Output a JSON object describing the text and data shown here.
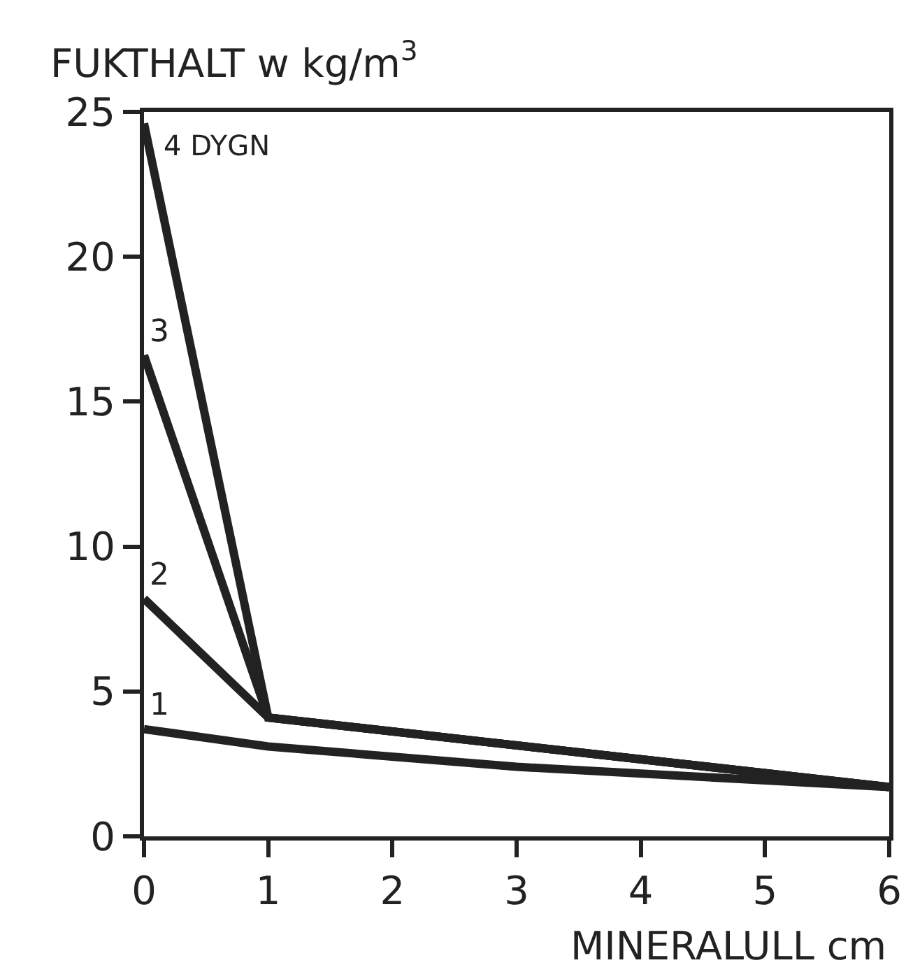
{
  "chart_data": {
    "type": "line",
    "ylabel": "FUKTHALT w kg/m$^{3}$",
    "xlabel": "MINERALULL cm",
    "xlim": [
      0,
      6
    ],
    "xticks": [
      0,
      1,
      2,
      3,
      4,
      5,
      6
    ],
    "ylim": [
      0,
      25
    ],
    "yticks": [
      0,
      5,
      10,
      15,
      20,
      25
    ],
    "grid": false,
    "legend": false,
    "marker": "none",
    "line_style": "solid",
    "series": [
      {
        "name": "1",
        "color": "#222222",
        "x": [
          0,
          1,
          3,
          6
        ],
        "values": [
          3.7,
          3.1,
          2.4,
          1.7
        ]
      },
      {
        "name": "2",
        "color": "#222222",
        "x": [
          0,
          1,
          6
        ],
        "values": [
          8.2,
          4.1,
          1.7
        ]
      },
      {
        "name": "3",
        "color": "#222222",
        "x": [
          0,
          1,
          6
        ],
        "values": [
          16.6,
          4.1,
          1.7
        ]
      },
      {
        "name": "4 DYGN",
        "color": "#222222",
        "x": [
          0,
          1,
          6
        ],
        "values": [
          24.6,
          4.1,
          1.7
        ]
      }
    ]
  }
}
